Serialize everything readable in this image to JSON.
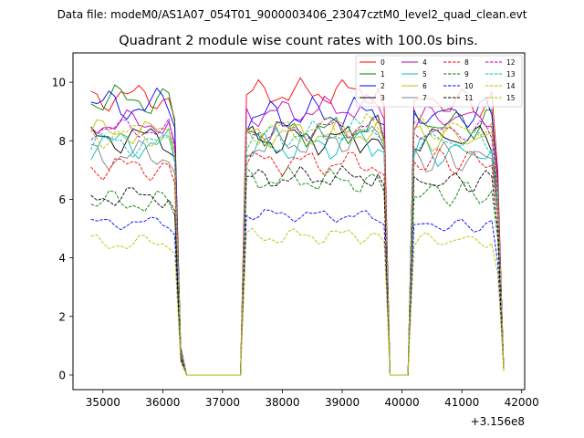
{
  "chart_data": {
    "type": "line",
    "suptitle": "Data file: modeM0/AS1A07_054T01_9000003406_23047cztM0_level2_quad_clean.evt",
    "title": "Quadrant 2 module wise count rates with 100.0s bins.",
    "xlabel": "",
    "ylabel": "",
    "x_offset_label": "+3.156e8",
    "xlim": [
      34500,
      42050
    ],
    "ylim": [
      -0.5,
      11.0
    ],
    "x_ticks": [
      35000,
      36000,
      37000,
      38000,
      39000,
      40000,
      41000,
      42000
    ],
    "x_tick_labels": [
      "35000",
      "36000",
      "37000",
      "38000",
      "39000",
      "40000",
      "41000",
      "42000"
    ],
    "y_ticks": [
      0,
      2,
      4,
      6,
      8,
      10
    ],
    "y_tick_labels": [
      "0",
      "2",
      "4",
      "6",
      "8",
      "10"
    ],
    "x_segments": [
      [
        34800,
        36300,
        100
      ],
      [
        36400,
        37300,
        100
      ],
      [
        37400,
        39700,
        100
      ],
      [
        39800,
        40100,
        100
      ],
      [
        40200,
        41600,
        100
      ],
      [
        41700,
        41700,
        100
      ]
    ],
    "legend_location": "upper right",
    "legend_columns": 4,
    "series": [
      {
        "name": "0",
        "color": "#ff0000",
        "dash": "solid",
        "levels": [
          9.5,
          9.6,
          9.7,
          9.3
        ],
        "wobble": 0.32
      },
      {
        "name": "1",
        "color": "#008000",
        "dash": "solid",
        "levels": [
          9.4,
          8.3,
          8.4,
          8.6
        ],
        "wobble": 0.35
      },
      {
        "name": "2",
        "color": "#0000ff",
        "dash": "solid",
        "levels": [
          9.2,
          8.8,
          9.0,
          8.9
        ],
        "wobble": 0.38
      },
      {
        "name": "3",
        "color": "#000000",
        "dash": "solid",
        "levels": [
          8.1,
          8.0,
          8.1,
          8.1
        ],
        "wobble": 0.35
      },
      {
        "name": "4",
        "color": "#bf00bf",
        "dash": "solid",
        "levels": [
          8.6,
          8.9,
          9.2,
          8.8
        ],
        "wobble": 0.3
      },
      {
        "name": "5",
        "color": "#00bfbf",
        "dash": "solid",
        "levels": [
          7.9,
          7.7,
          8.0,
          7.6
        ],
        "wobble": 0.35
      },
      {
        "name": "6",
        "color": "#bfbf00",
        "dash": "solid",
        "levels": [
          8.3,
          8.2,
          8.3,
          8.1
        ],
        "wobble": 0.3
      },
      {
        "name": "7",
        "color": "#808080",
        "dash": "solid",
        "levels": [
          7.5,
          7.8,
          8.2,
          7.4
        ],
        "wobble": 0.35
      },
      {
        "name": "8",
        "color": "#ff0000",
        "dash": "dashed",
        "levels": [
          7.1,
          7.3,
          7.2,
          7.3
        ],
        "wobble": 0.3
      },
      {
        "name": "9",
        "color": "#008000",
        "dash": "dashed",
        "levels": [
          5.9,
          6.7,
          6.6,
          6.2
        ],
        "wobble": 0.28
      },
      {
        "name": "10",
        "color": "#0000ff",
        "dash": "dashed",
        "levels": [
          5.2,
          5.5,
          5.4,
          5.1
        ],
        "wobble": 0.15
      },
      {
        "name": "11",
        "color": "#000000",
        "dash": "dashed",
        "levels": [
          6.1,
          6.7,
          6.8,
          6.6
        ],
        "wobble": 0.25
      },
      {
        "name": "12",
        "color": "#bf00bf",
        "dash": "dashed",
        "levels": [
          8.4,
          8.3,
          8.5,
          8.3
        ],
        "wobble": 0.25
      },
      {
        "name": "13",
        "color": "#00bfbf",
        "dash": "dashed",
        "levels": [
          7.9,
          8.1,
          8.4,
          8.0
        ],
        "wobble": 0.3
      },
      {
        "name": "14",
        "color": "#bfbf00",
        "dash": "dashed",
        "levels": [
          4.5,
          4.7,
          4.8,
          4.6
        ],
        "wobble": 0.2
      },
      {
        "name": "15",
        "color": "#bfbf00",
        "dash": "dashed",
        "levels": [
          8.2,
          8.3,
          8.5,
          8.4
        ],
        "wobble": 0.3
      }
    ]
  }
}
